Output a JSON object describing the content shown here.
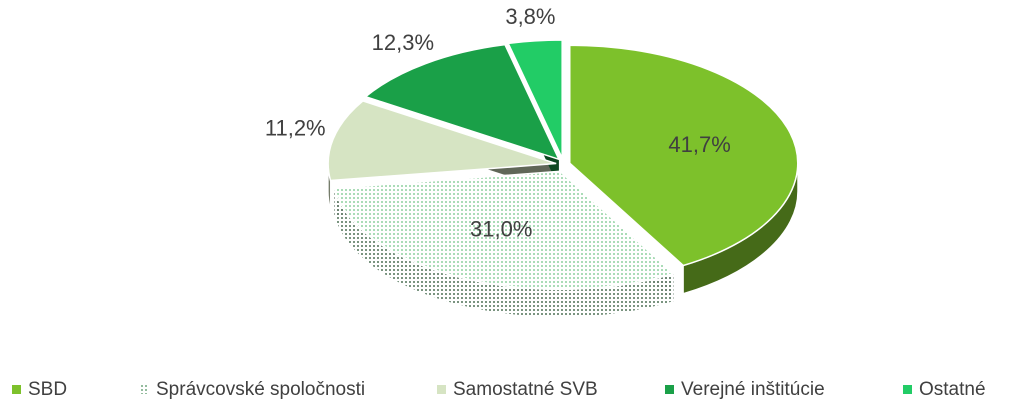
{
  "chart_data": {
    "type": "pie",
    "categories": [
      "SBD",
      "Správcovské spoločnosti",
      "Samostatné SVB",
      "Verejné inštitúcie",
      "Ostatné"
    ],
    "values": [
      41.7,
      31.0,
      11.2,
      12.3,
      3.8
    ],
    "value_labels": [
      "41,7%",
      "31,0%",
      "11,2%",
      "12,3%",
      "3,8%"
    ],
    "colors": [
      "#7dc12b",
      "#8fd1a0",
      "#d6e4c3",
      "#1aa048",
      "#22cc66"
    ],
    "patterns": [
      null,
      "dots",
      null,
      null,
      null
    ],
    "legend": "bottom"
  }
}
